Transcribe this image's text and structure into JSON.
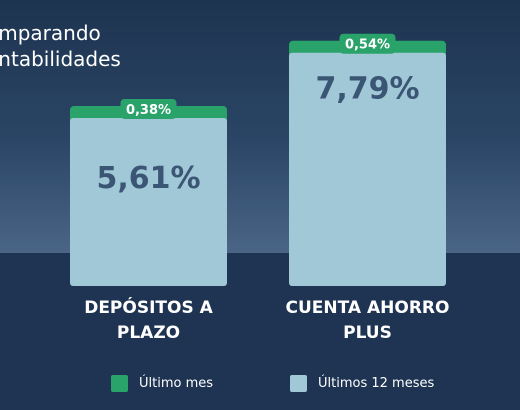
{
  "title": {
    "line1": "omparando",
    "line2": "entabilidades"
  },
  "colors": {
    "monthly": "#2aa36b",
    "annual": "#a0c8d6",
    "value_text": "#3b5574"
  },
  "chart_data": {
    "type": "bar",
    "categories": [
      {
        "line1": "DEPÓSITOS A",
        "line2": "PLAZO"
      },
      {
        "line1": "CUENTA AHORRO",
        "line2": "PLUS"
      }
    ],
    "series": [
      {
        "name": "Últimos 12 meses",
        "values": [
          5.61,
          7.79
        ],
        "labels": [
          "5,61%",
          "7,79%"
        ]
      },
      {
        "name": "Último mes",
        "values": [
          0.38,
          0.54
        ],
        "labels": [
          "0,38%",
          "0,54%"
        ]
      }
    ],
    "title": "omparando entabilidades",
    "xlabel": "",
    "ylabel": "",
    "legend": "bottom",
    "grid": false
  },
  "legend": {
    "monthly_label": "Último mes",
    "annual_label": "Últimos 12 meses"
  }
}
